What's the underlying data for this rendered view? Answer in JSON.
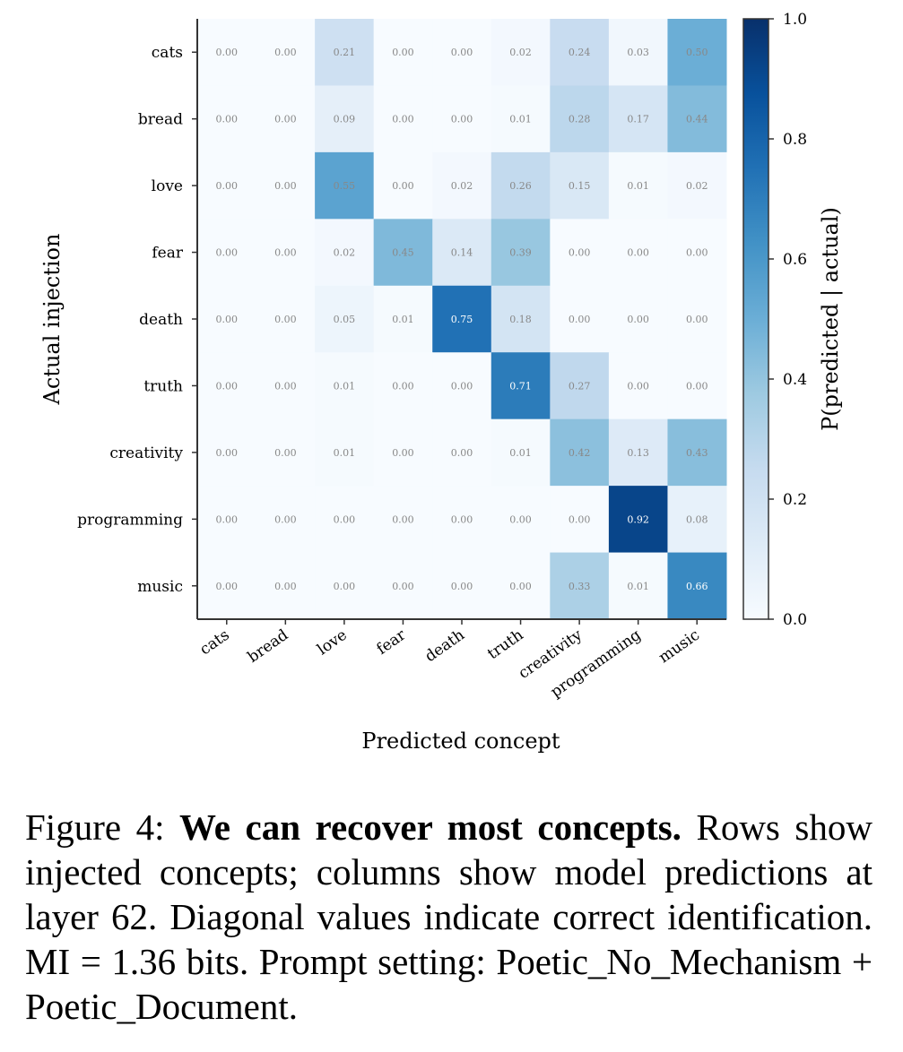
{
  "chart_data": {
    "type": "heatmap",
    "rows": [
      "cats",
      "bread",
      "love",
      "fear",
      "death",
      "truth",
      "creativity",
      "programming",
      "music"
    ],
    "columns": [
      "cats",
      "bread",
      "love",
      "fear",
      "death",
      "truth",
      "creativity",
      "programming",
      "music"
    ],
    "values": [
      [
        0.0,
        0.0,
        0.21,
        0.0,
        0.0,
        0.02,
        0.24,
        0.03,
        0.5
      ],
      [
        0.0,
        0.0,
        0.09,
        0.0,
        0.0,
        0.01,
        0.28,
        0.17,
        0.44
      ],
      [
        0.0,
        0.0,
        0.55,
        0.0,
        0.02,
        0.26,
        0.15,
        0.01,
        0.02
      ],
      [
        0.0,
        0.0,
        0.02,
        0.45,
        0.14,
        0.39,
        0.0,
        0.0,
        0.0
      ],
      [
        0.0,
        0.0,
        0.05,
        0.01,
        0.75,
        0.18,
        0.0,
        0.0,
        0.0
      ],
      [
        0.0,
        0.0,
        0.01,
        0.0,
        0.0,
        0.71,
        0.27,
        0.0,
        0.0
      ],
      [
        0.0,
        0.0,
        0.01,
        0.0,
        0.0,
        0.01,
        0.42,
        0.13,
        0.43
      ],
      [
        0.0,
        0.0,
        0.0,
        0.0,
        0.0,
        0.0,
        0.0,
        0.92,
        0.08
      ],
      [
        0.0,
        0.0,
        0.0,
        0.0,
        0.0,
        0.0,
        0.33,
        0.01,
        0.66
      ]
    ],
    "xlabel": "Predicted concept",
    "ylabel": "Actual injection",
    "colorbar": {
      "label": "P(predicted | actual)",
      "range": [
        0.0,
        1.0
      ],
      "ticks": [
        "0.0",
        "0.2",
        "0.4",
        "0.6",
        "0.8",
        "1.0"
      ],
      "colormap": "Blues"
    },
    "grid": false
  },
  "caption": {
    "prefix": "Figure 4: ",
    "bold": "We can recover most concepts.",
    "body": " Rows show injected concepts; columns show model predictions at layer 62. Diagonal values indicate correct identification. MI = 1.36 bits. Prompt setting: Poetic_No_Mechanism + Poetic_Document."
  }
}
